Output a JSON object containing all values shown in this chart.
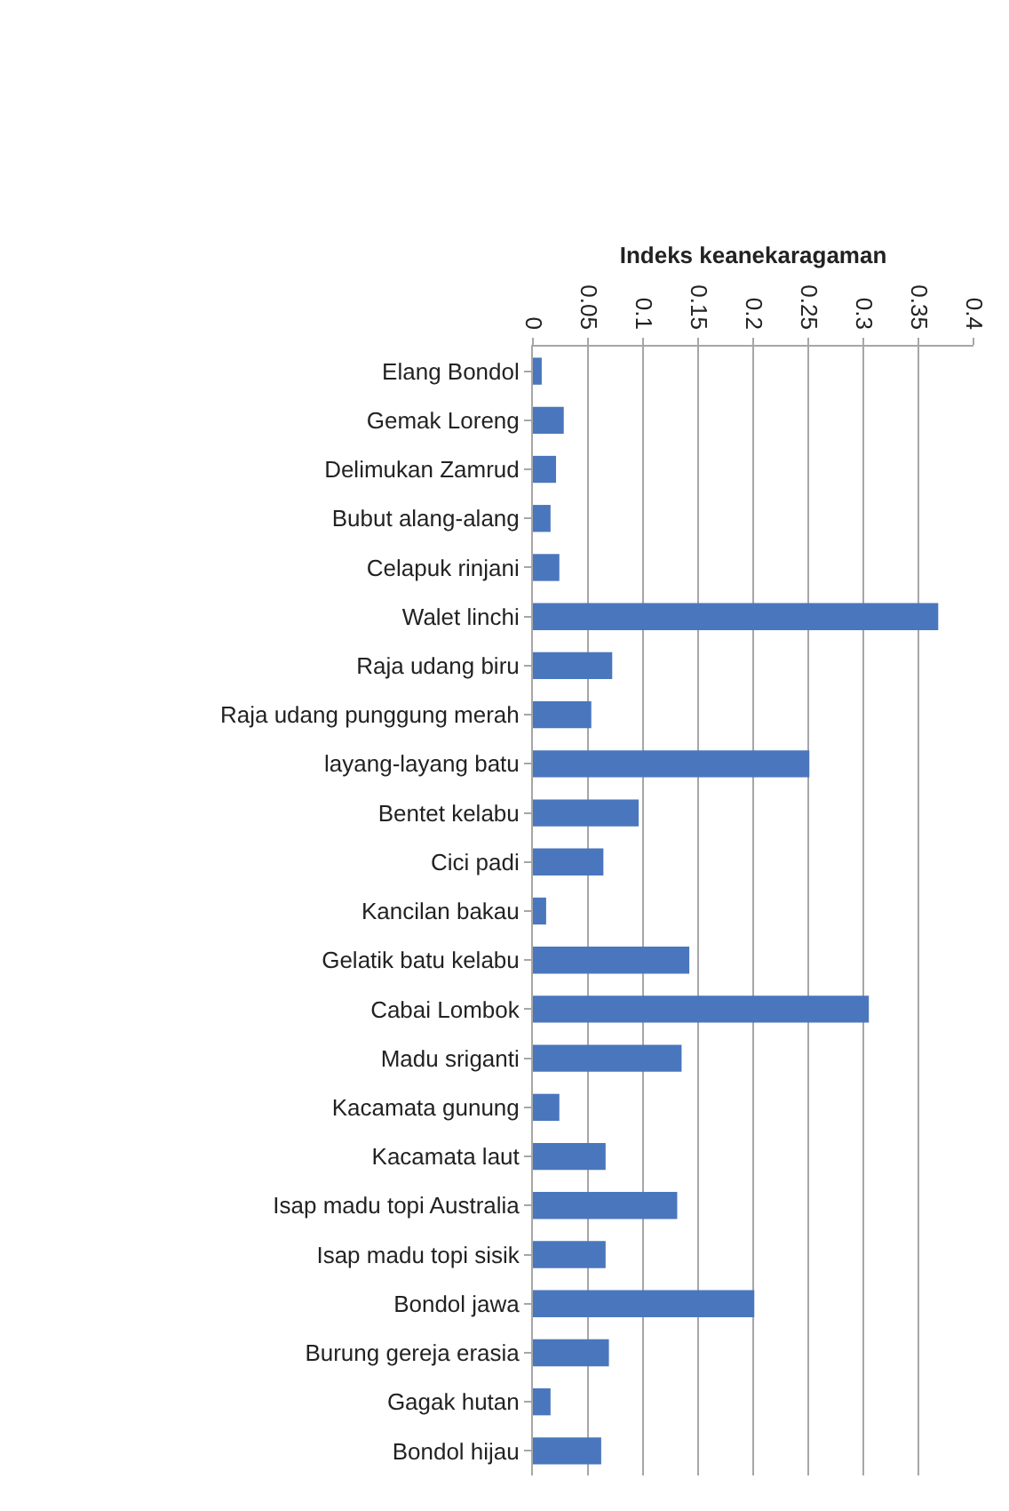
{
  "chart_data": {
    "type": "bar",
    "orientation": "horizontal",
    "xlabel": "Indeks keanekaragaman",
    "categories": [
      "Elang Bondol",
      "Gemak Loreng",
      "Delimukan Zamrud",
      "Bubut alang-alang",
      "Celapuk rinjani",
      "Walet linchi",
      "Raja udang biru",
      "Raja udang punggung merah",
      "layang-layang batu",
      "Bentet kelabu",
      "Cici padi",
      "Kancilan bakau",
      "Gelatik batu kelabu",
      "Cabai Lombok",
      "Madu sriganti",
      "Kacamata gunung",
      "Kacamata laut",
      "Isap madu topi Australia",
      "Isap madu topi sisik",
      "Bondol jawa",
      "Burung gereja erasia",
      "Gagak hutan",
      "Bondol hijau"
    ],
    "values": [
      0.008,
      0.028,
      0.021,
      0.016,
      0.024,
      0.368,
      0.072,
      0.053,
      0.251,
      0.096,
      0.064,
      0.012,
      0.142,
      0.305,
      0.135,
      0.024,
      0.066,
      0.131,
      0.066,
      0.201,
      0.069,
      0.016,
      0.062
    ],
    "color": "#4a76bd",
    "xlim": [
      0,
      0.4
    ],
    "xticks": [
      0,
      0.05,
      0.1,
      0.15,
      0.2,
      0.25,
      0.3,
      0.35,
      0.4
    ],
    "grid": "x"
  }
}
